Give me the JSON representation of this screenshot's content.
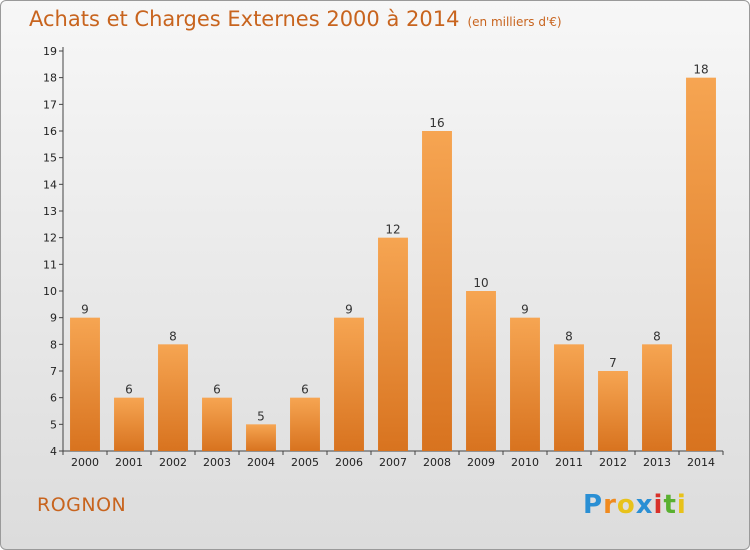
{
  "chart_data": {
    "type": "bar",
    "title": "Achats et Charges Externes 2000 à 2014",
    "subtitle": "(en milliers d'€)",
    "categories": [
      "2000",
      "2001",
      "2002",
      "2003",
      "2004",
      "2005",
      "2006",
      "2007",
      "2008",
      "2009",
      "2010",
      "2011",
      "2012",
      "2013",
      "2014"
    ],
    "values": [
      9,
      6,
      8,
      6,
      5,
      6,
      9,
      12,
      16,
      10,
      9,
      8,
      7,
      8,
      18
    ],
    "ylim": [
      4,
      19
    ],
    "yticks": [
      4,
      5,
      6,
      7,
      8,
      9,
      10,
      11,
      12,
      13,
      14,
      15,
      16,
      17,
      18,
      19
    ],
    "grid": false,
    "bar_color_top": "#f6a552",
    "bar_color_bottom": "#d8731f",
    "accent_color": "#c8641e"
  },
  "commune": "ROGNON",
  "logo": {
    "letters": [
      "P",
      "r",
      "o",
      "x",
      "i",
      "t",
      "i"
    ],
    "colors": [
      "#2a8fd4",
      "#f08a1e",
      "#e8c21a",
      "#2a8fd4",
      "#d8312a",
      "#5ab030",
      "#e8c21a"
    ]
  }
}
